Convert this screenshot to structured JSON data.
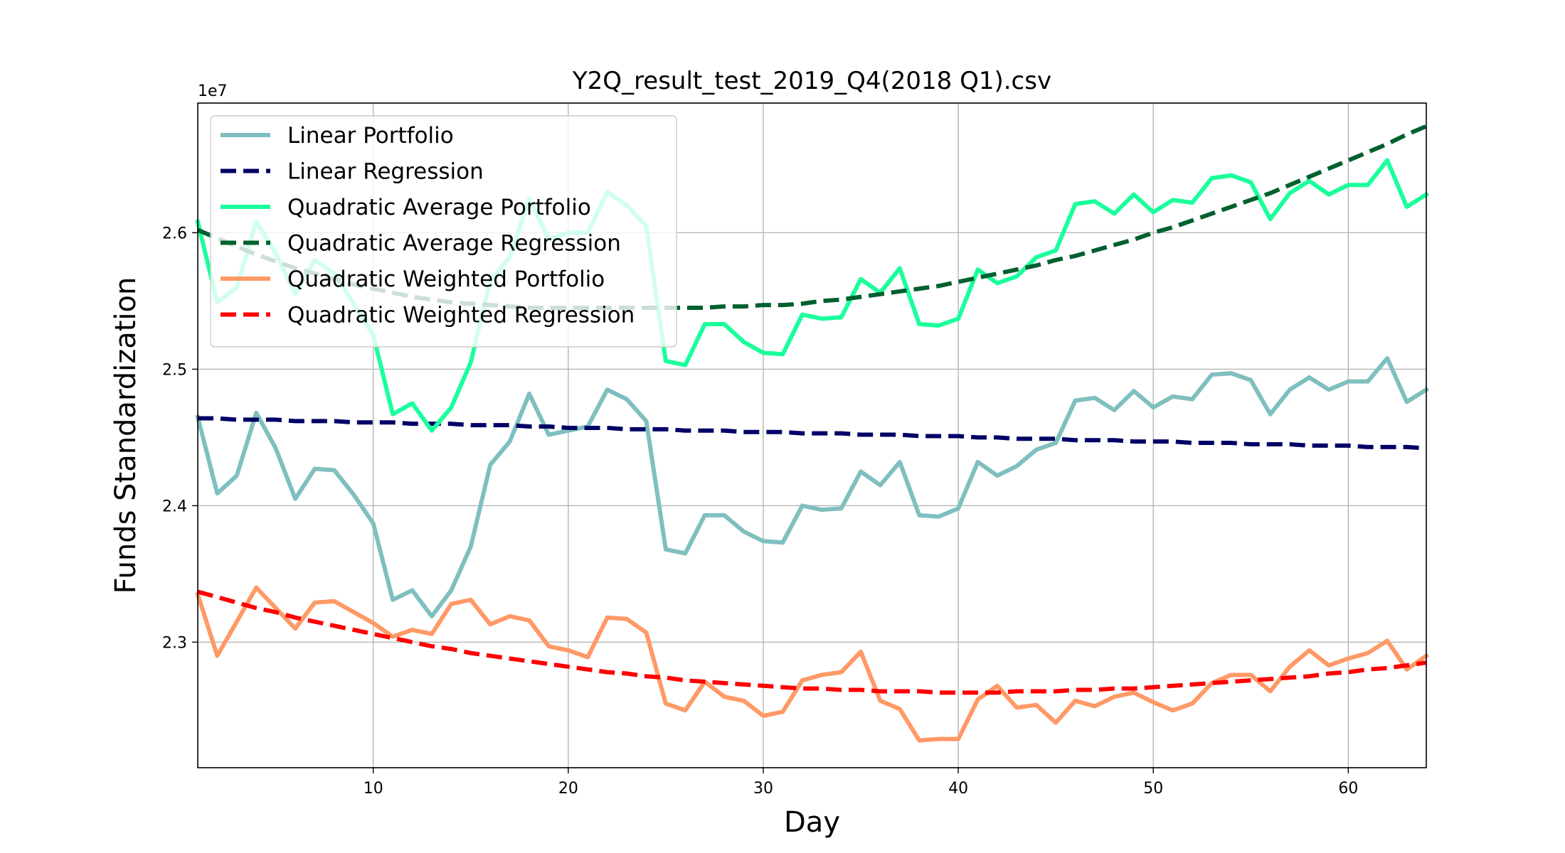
{
  "chart_data": {
    "type": "line",
    "title": "Y2Q_result_test_2019_Q4(2018 Q1).csv",
    "xlabel": "Day",
    "ylabel": "Funds Standardization",
    "y_offset_label": "1e7",
    "xlim": [
      1,
      64
    ],
    "ylim": [
      22.08,
      26.95
    ],
    "xticks": [
      10,
      20,
      30,
      40,
      50,
      60
    ],
    "yticks": [
      23.0,
      24.0,
      25.0,
      26.0
    ],
    "ytick_labels": [
      "2.3",
      "2.4",
      "2.5",
      "2.6"
    ],
    "grid": true,
    "legend_position": "upper-left",
    "x": [
      1,
      2,
      3,
      4,
      5,
      6,
      7,
      8,
      9,
      10,
      11,
      12,
      13,
      14,
      15,
      16,
      17,
      18,
      19,
      20,
      21,
      22,
      23,
      24,
      25,
      26,
      27,
      28,
      29,
      30,
      31,
      32,
      33,
      34,
      35,
      36,
      37,
      38,
      39,
      40,
      41,
      42,
      43,
      44,
      45,
      46,
      47,
      48,
      49,
      50,
      51,
      52,
      53,
      54,
      55,
      56,
      57,
      58,
      59,
      60,
      61,
      62,
      63,
      64
    ],
    "series": [
      {
        "name": "Linear Portfolio",
        "color": "#7fbfbf",
        "style": "solid",
        "values": [
          24.65,
          24.09,
          24.22,
          24.68,
          24.42,
          24.05,
          24.27,
          24.26,
          24.08,
          23.87,
          23.31,
          23.38,
          23.19,
          23.38,
          23.7,
          24.3,
          24.47,
          24.82,
          24.52,
          24.55,
          24.58,
          24.85,
          24.78,
          24.62,
          23.68,
          23.65,
          23.93,
          23.93,
          23.81,
          23.74,
          23.73,
          24.0,
          23.97,
          23.98,
          24.25,
          24.15,
          24.32,
          23.93,
          23.92,
          23.98,
          24.32,
          24.22,
          24.29,
          24.41,
          24.46,
          24.77,
          24.79,
          24.7,
          24.84,
          24.72,
          24.8,
          24.78,
          24.96,
          24.97,
          24.92,
          24.67,
          24.85,
          24.94,
          24.85,
          24.91,
          24.91,
          25.08,
          24.76,
          24.85
        ]
      },
      {
        "name": "Linear Regression",
        "color": "#000066",
        "style": "dashed",
        "values": [
          24.64,
          24.64,
          24.63,
          24.63,
          24.63,
          24.62,
          24.62,
          24.62,
          24.61,
          24.61,
          24.61,
          24.6,
          24.6,
          24.6,
          24.59,
          24.59,
          24.59,
          24.58,
          24.58,
          24.57,
          24.57,
          24.57,
          24.56,
          24.56,
          24.56,
          24.55,
          24.55,
          24.55,
          24.54,
          24.54,
          24.54,
          24.53,
          24.53,
          24.53,
          24.52,
          24.52,
          24.52,
          24.51,
          24.51,
          24.51,
          24.5,
          24.5,
          24.49,
          24.49,
          24.49,
          24.48,
          24.48,
          24.48,
          24.47,
          24.47,
          24.47,
          24.46,
          24.46,
          24.46,
          24.45,
          24.45,
          24.45,
          24.44,
          24.44,
          24.44,
          24.43,
          24.43,
          24.43,
          24.42
        ]
      },
      {
        "name": "Quadratic Average Portfolio",
        "color": "#1aff9c",
        "style": "solid",
        "values": [
          26.08,
          25.49,
          25.6,
          26.08,
          25.85,
          25.55,
          25.8,
          25.7,
          25.48,
          25.25,
          24.67,
          24.75,
          24.55,
          24.72,
          25.05,
          25.65,
          25.82,
          26.25,
          25.95,
          26.0,
          26.0,
          26.3,
          26.2,
          26.05,
          25.06,
          25.03,
          25.33,
          25.33,
          25.2,
          25.12,
          25.11,
          25.4,
          25.37,
          25.38,
          25.66,
          25.56,
          25.74,
          25.33,
          25.32,
          25.37,
          25.73,
          25.63,
          25.68,
          25.82,
          25.87,
          26.21,
          26.23,
          26.14,
          26.28,
          26.15,
          26.24,
          26.22,
          26.4,
          26.42,
          26.37,
          26.1,
          26.29,
          26.38,
          26.28,
          26.35,
          26.35,
          26.53,
          26.19,
          26.28
        ]
      },
      {
        "name": "Quadratic Average Regression",
        "color": "#00602e",
        "style": "dashed",
        "values": [
          26.02,
          25.96,
          25.9,
          25.84,
          25.79,
          25.74,
          25.7,
          25.66,
          25.62,
          25.59,
          25.56,
          25.53,
          25.51,
          25.49,
          25.48,
          25.47,
          25.46,
          25.45,
          25.45,
          25.45,
          25.45,
          25.45,
          25.45,
          25.45,
          25.45,
          25.45,
          25.45,
          25.46,
          25.46,
          25.47,
          25.47,
          25.48,
          25.5,
          25.51,
          25.53,
          25.55,
          25.57,
          25.59,
          25.61,
          25.64,
          25.67,
          25.7,
          25.73,
          25.76,
          25.8,
          25.83,
          25.87,
          25.91,
          25.95,
          26.0,
          26.04,
          26.09,
          26.14,
          26.19,
          26.24,
          26.29,
          26.35,
          26.41,
          26.47,
          26.53,
          26.59,
          26.65,
          26.72,
          26.78
        ]
      },
      {
        "name": "Quadratic Weighted Portfolio",
        "color": "#ff9966",
        "style": "solid",
        "values": [
          23.35,
          22.9,
          23.15,
          23.4,
          23.25,
          23.1,
          23.29,
          23.3,
          23.22,
          23.14,
          23.04,
          23.09,
          23.06,
          23.28,
          23.31,
          23.13,
          23.19,
          23.16,
          22.97,
          22.94,
          22.89,
          23.18,
          23.17,
          23.07,
          22.55,
          22.5,
          22.71,
          22.6,
          22.57,
          22.46,
          22.49,
          22.72,
          22.76,
          22.78,
          22.93,
          22.57,
          22.51,
          22.28,
          22.29,
          22.29,
          22.58,
          22.68,
          22.52,
          22.54,
          22.41,
          22.57,
          22.53,
          22.6,
          22.63,
          22.56,
          22.5,
          22.55,
          22.7,
          22.76,
          22.76,
          22.64,
          22.82,
          22.94,
          22.83,
          22.88,
          22.92,
          23.01,
          22.8,
          22.9
        ]
      },
      {
        "name": "Quadratic Weighted Regression",
        "color": "#ff0000",
        "style": "dashed",
        "values": [
          23.37,
          23.33,
          23.29,
          23.25,
          23.22,
          23.18,
          23.15,
          23.12,
          23.09,
          23.06,
          23.03,
          23.0,
          22.97,
          22.95,
          22.92,
          22.9,
          22.88,
          22.86,
          22.84,
          22.82,
          22.8,
          22.78,
          22.77,
          22.75,
          22.74,
          22.72,
          22.71,
          22.7,
          22.69,
          22.68,
          22.67,
          22.66,
          22.66,
          22.65,
          22.65,
          22.64,
          22.64,
          22.64,
          22.63,
          22.63,
          22.63,
          22.63,
          22.64,
          22.64,
          22.64,
          22.65,
          22.65,
          22.66,
          22.66,
          22.67,
          22.68,
          22.69,
          22.7,
          22.71,
          22.72,
          22.73,
          22.74,
          22.75,
          22.77,
          22.78,
          22.8,
          22.81,
          22.83,
          22.85
        ]
      }
    ]
  }
}
